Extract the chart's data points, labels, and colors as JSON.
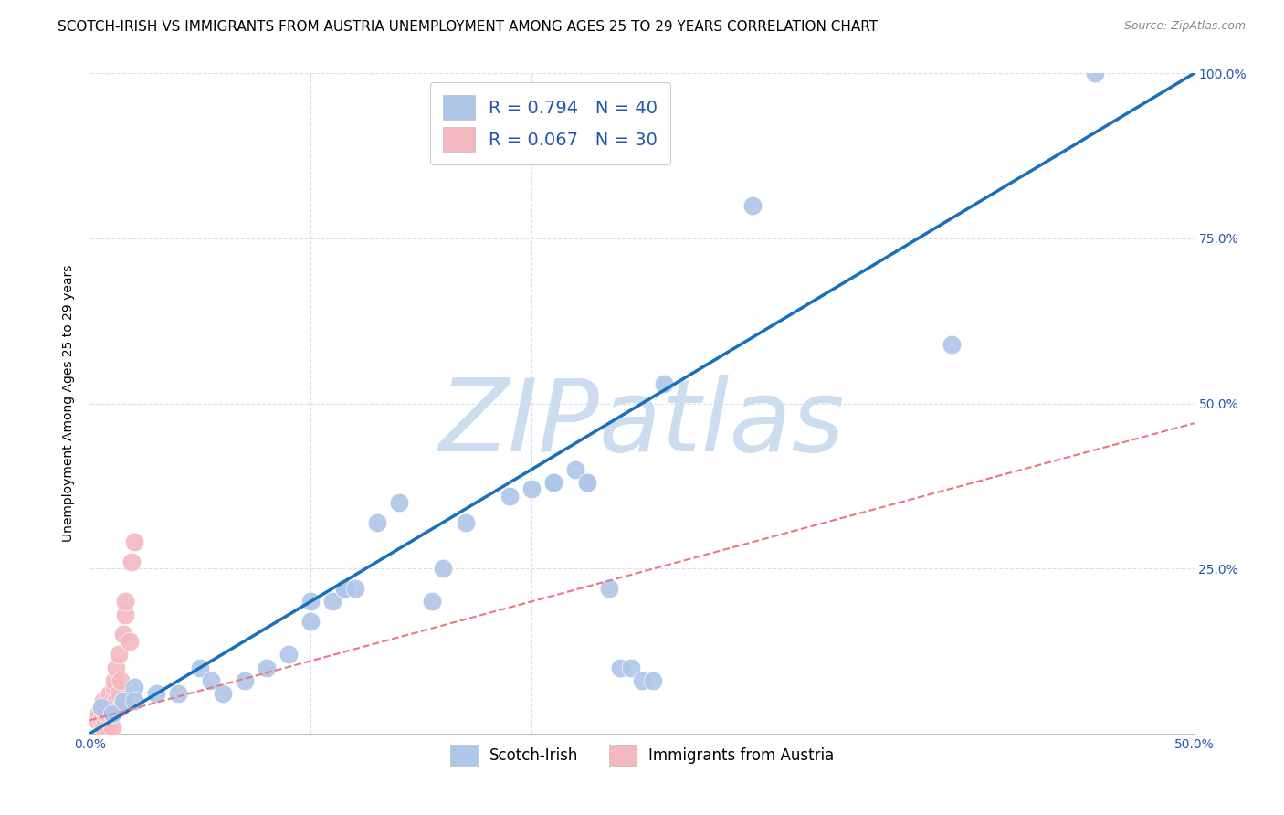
{
  "title": "SCOTCH-IRISH VS IMMIGRANTS FROM AUSTRIA UNEMPLOYMENT AMONG AGES 25 TO 29 YEARS CORRELATION CHART",
  "source": "Source: ZipAtlas.com",
  "ylabel": "Unemployment Among Ages 25 to 29 years",
  "xlim": [
    0.0,
    0.5
  ],
  "ylim": [
    0.0,
    1.0
  ],
  "xticks": [
    0.0,
    0.1,
    0.2,
    0.3,
    0.4,
    0.5
  ],
  "yticks": [
    0.0,
    0.25,
    0.5,
    0.75,
    1.0
  ],
  "blue_R": 0.794,
  "blue_N": 40,
  "pink_R": 0.067,
  "pink_N": 30,
  "blue_color": "#aec6e8",
  "pink_color": "#f4b8c1",
  "blue_line_color": "#1a6fba",
  "pink_line_color": "#e87880",
  "watermark": "ZIPatlas",
  "watermark_color": "#ccddf0",
  "legend_color": "#2255aa",
  "blue_scatter_x": [
    0.005,
    0.01,
    0.015,
    0.02,
    0.02,
    0.03,
    0.04,
    0.05,
    0.055,
    0.06,
    0.07,
    0.08,
    0.09,
    0.1,
    0.1,
    0.11,
    0.115,
    0.115,
    0.12,
    0.13,
    0.14,
    0.155,
    0.16,
    0.17,
    0.19,
    0.2,
    0.21,
    0.21,
    0.22,
    0.225,
    0.225,
    0.235,
    0.24,
    0.245,
    0.25,
    0.255,
    0.26,
    0.3,
    0.39,
    0.455
  ],
  "blue_scatter_y": [
    0.04,
    0.03,
    0.05,
    0.07,
    0.05,
    0.06,
    0.06,
    0.1,
    0.08,
    0.06,
    0.08,
    0.1,
    0.12,
    0.17,
    0.2,
    0.2,
    0.22,
    0.22,
    0.22,
    0.32,
    0.35,
    0.2,
    0.25,
    0.32,
    0.36,
    0.37,
    0.38,
    0.38,
    0.4,
    0.38,
    0.38,
    0.22,
    0.1,
    0.1,
    0.08,
    0.08,
    0.53,
    0.8,
    0.59,
    1.0
  ],
  "pink_scatter_x": [
    0.003,
    0.004,
    0.005,
    0.005,
    0.006,
    0.006,
    0.007,
    0.007,
    0.008,
    0.008,
    0.009,
    0.009,
    0.01,
    0.01,
    0.01,
    0.011,
    0.011,
    0.012,
    0.012,
    0.013,
    0.013,
    0.014,
    0.014,
    0.015,
    0.015,
    0.016,
    0.016,
    0.018,
    0.019,
    0.02
  ],
  "pink_scatter_y": [
    0.02,
    0.03,
    0.02,
    0.04,
    0.01,
    0.05,
    0.02,
    0.03,
    0.01,
    0.03,
    0.04,
    0.06,
    0.01,
    0.03,
    0.05,
    0.07,
    0.08,
    0.05,
    0.1,
    0.06,
    0.12,
    0.04,
    0.08,
    0.05,
    0.15,
    0.18,
    0.2,
    0.14,
    0.26,
    0.29
  ],
  "blue_line_x": [
    -0.01,
    0.51
  ],
  "blue_line_y": [
    -0.02,
    1.02
  ],
  "pink_line_x": [
    0.0,
    0.5
  ],
  "pink_line_y": [
    0.02,
    0.47
  ],
  "background_color": "#ffffff",
  "grid_color": "#dde0ea",
  "title_fontsize": 11,
  "axis_fontsize": 10,
  "tick_fontsize": 10,
  "legend_fontsize": 14
}
